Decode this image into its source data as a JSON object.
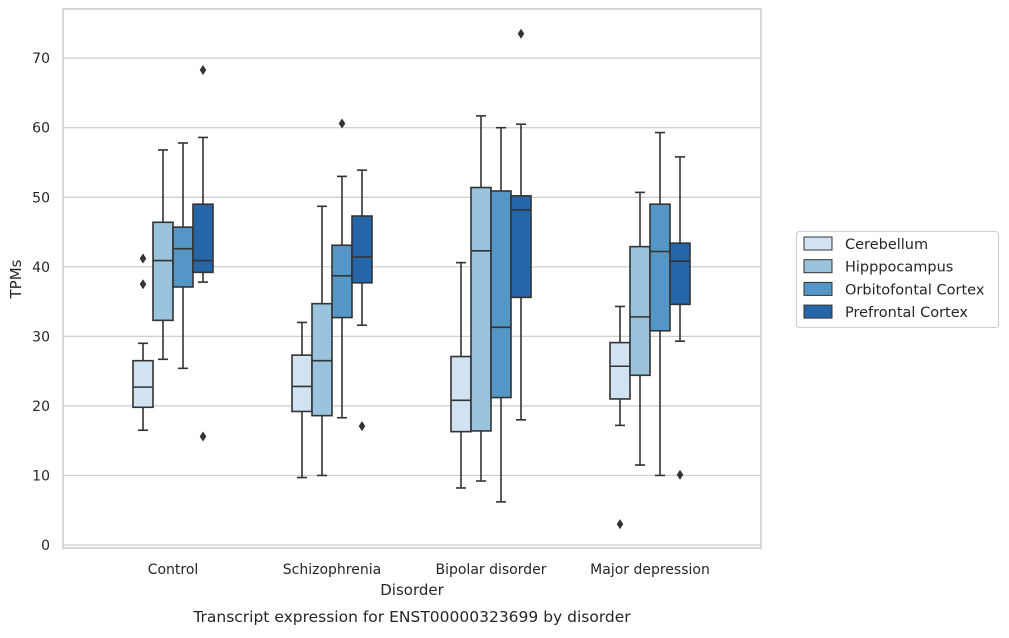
{
  "chart_data": {
    "type": "boxplot",
    "title": "",
    "caption": "Transcript expression for ENST00000323699 by disorder",
    "xlabel": "Disorder",
    "ylabel": "TPMs",
    "ylim": [
      -0.5,
      75
    ],
    "yticks": [
      0,
      10,
      20,
      30,
      40,
      50,
      60,
      70
    ],
    "grid": "horizontal",
    "legend_position": "right",
    "categories": [
      "Control",
      "Schizophrenia",
      "Bipolar disorder",
      "Major depression"
    ],
    "series": [
      {
        "name": "Cerebellum",
        "color": "#d1e2f2",
        "boxes": [
          {
            "whislo": 16.5,
            "q1": 19.8,
            "med": 22.7,
            "q3": 26.5,
            "whishi": 29.0,
            "fliers": [
              37.5,
              41.2
            ]
          },
          {
            "whislo": 9.7,
            "q1": 19.2,
            "med": 22.8,
            "q3": 27.3,
            "whishi": 32.0,
            "fliers": []
          },
          {
            "whislo": 8.2,
            "q1": 16.3,
            "med": 20.8,
            "q3": 27.1,
            "whishi": 40.6,
            "fliers": []
          },
          {
            "whislo": 17.2,
            "q1": 21.0,
            "med": 25.7,
            "q3": 29.1,
            "whishi": 34.3,
            "fliers": [
              3.0
            ]
          }
        ]
      },
      {
        "name": "Hipppocampus",
        "color": "#9ac3de",
        "boxes": [
          {
            "whislo": 26.7,
            "q1": 32.3,
            "med": 40.9,
            "q3": 46.4,
            "whishi": 56.8,
            "fliers": []
          },
          {
            "whislo": 10.0,
            "q1": 18.6,
            "med": 26.5,
            "q3": 34.7,
            "whishi": 48.7,
            "fliers": []
          },
          {
            "whislo": 9.2,
            "q1": 16.4,
            "med": 42.3,
            "q3": 51.4,
            "whishi": 61.7,
            "fliers": []
          },
          {
            "whislo": 11.5,
            "q1": 24.4,
            "med": 32.8,
            "q3": 42.9,
            "whishi": 50.7,
            "fliers": []
          }
        ]
      },
      {
        "name": "Orbitofontal Cortex",
        "color": "#5497c6",
        "boxes": [
          {
            "whislo": 25.4,
            "q1": 37.1,
            "med": 42.6,
            "q3": 45.7,
            "whishi": 57.8,
            "fliers": []
          },
          {
            "whislo": 18.3,
            "q1": 32.7,
            "med": 38.7,
            "q3": 43.1,
            "whishi": 53.0,
            "fliers": [
              60.6
            ]
          },
          {
            "whislo": 6.2,
            "q1": 21.2,
            "med": 31.3,
            "q3": 50.9,
            "whishi": 60.0,
            "fliers": []
          },
          {
            "whislo": 10.0,
            "q1": 30.8,
            "med": 42.2,
            "q3": 49.0,
            "whishi": 59.3,
            "fliers": []
          }
        ]
      },
      {
        "name": "Prefrontal Cortex",
        "color": "#2566a8",
        "boxes": [
          {
            "whislo": 37.8,
            "q1": 39.2,
            "med": 40.9,
            "q3": 49.0,
            "whishi": 58.6,
            "fliers": [
              15.6,
              68.3
            ]
          },
          {
            "whislo": 31.6,
            "q1": 37.7,
            "med": 41.4,
            "q3": 47.3,
            "whishi": 53.9,
            "fliers": [
              17.1
            ]
          },
          {
            "whislo": 18.0,
            "q1": 35.6,
            "med": 48.2,
            "q3": 50.2,
            "whishi": 60.5,
            "fliers": [
              73.5
            ]
          },
          {
            "whislo": 29.3,
            "q1": 34.6,
            "med": 40.8,
            "q3": 43.4,
            "whishi": 55.8,
            "fliers": [
              10.1
            ]
          }
        ]
      }
    ],
    "colors": {
      "grid": "#cccccc",
      "frame": "#cccccc",
      "line": "#333333",
      "text": "#262626"
    }
  }
}
